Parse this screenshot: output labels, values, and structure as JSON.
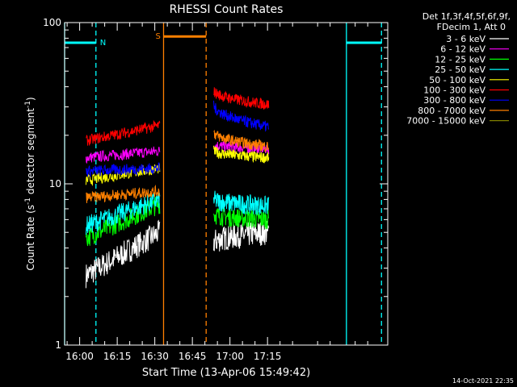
{
  "chart_data": {
    "type": "line",
    "title": "RHESSI Count Rates",
    "xlabel": "Start Time (13-Apr-06 15:49:42)",
    "ylabel_main": "Count Rate (s",
    "ylabel_sup1": "-1",
    "ylabel_mid": " detector segment",
    "ylabel_sup2": "-1",
    "ylabel_end": ")",
    "yscale": "log",
    "ylim": [
      1,
      100
    ],
    "y_ticks": [
      {
        "v": 1,
        "label": "1"
      },
      {
        "v": 10,
        "label": "10"
      },
      {
        "v": 100,
        "label": "100"
      }
    ],
    "xlim_min": [
      -6,
      123
    ],
    "x_ticks": [
      {
        "v": 0,
        "label": "16:00"
      },
      {
        "v": 15,
        "label": "16:15"
      },
      {
        "v": 30,
        "label": "16:30"
      },
      {
        "v": 45,
        "label": "16:45"
      },
      {
        "v": 60,
        "label": "17:00"
      },
      {
        "v": 75,
        "label": "17:15"
      }
    ],
    "legend_header": [
      "Det 1f,3f,4f,5f,6f,9f,",
      "FDecim 1, Att 0"
    ],
    "series": [
      {
        "name": "3 - 6 keV",
        "color": "#ffffff",
        "seg1": [
          2.7,
          5.0
        ],
        "seg2": [
          4.3,
          5.0
        ]
      },
      {
        "name": "6 - 12 keV",
        "color": "#ff00ff",
        "seg1": [
          14.5,
          16.0
        ],
        "seg2": [
          17.5,
          16.5
        ]
      },
      {
        "name": "12 - 25 keV",
        "color": "#00ff00",
        "seg1": [
          4.6,
          7.5
        ],
        "seg2": [
          6.5,
          6.0
        ]
      },
      {
        "name": "25 - 50 keV",
        "color": "#00ffff",
        "seg1": [
          5.5,
          8.0
        ],
        "seg2": [
          8.0,
          7.3
        ]
      },
      {
        "name": "50 - 100 keV",
        "color": "#ffff00",
        "seg1": [
          10.5,
          12.5
        ],
        "seg2": [
          16.0,
          14.5
        ]
      },
      {
        "name": "100 - 300 keV",
        "color": "#ff0000",
        "seg1": [
          18.5,
          23.0
        ],
        "seg2": [
          38.0,
          31.0
        ]
      },
      {
        "name": "300 - 800 keV",
        "color": "#0000ff",
        "seg1": [
          12.0,
          12.5
        ],
        "seg2": [
          31.0,
          22.5
        ]
      },
      {
        "name": "800 - 7000 keV",
        "color": "#ff8000",
        "seg1": [
          8.2,
          9.0
        ],
        "seg2": [
          21.0,
          17.0
        ]
      },
      {
        "name": "7000 - 15000 keV",
        "color": "#808000",
        "seg1": [],
        "seg2": []
      }
    ],
    "segments_time": [
      [
        2.5,
        32.0
      ],
      [
        53.5,
        75.5
      ]
    ],
    "bars": [
      {
        "label": "N",
        "color": "#00ffff",
        "y": 75,
        "start": -6,
        "end": 6.5,
        "vline_solid": -6,
        "vline_dashed": 6.5
      },
      {
        "label": "S",
        "color": "#ff8000",
        "y": 82,
        "start": 33.5,
        "end": 50.5,
        "vline_solid": 33.5,
        "vline_dashed": 50.5
      },
      {
        "label": "",
        "color": "#00ffff",
        "y": 75,
        "start": 106.5,
        "end": 120.5,
        "vline_solid": 106.5,
        "vline_dashed": 120.5
      }
    ],
    "annotation": "14-Oct-2021 22:35",
    "grid": false,
    "legend_placement": "top-right"
  },
  "colors": {
    "background": "#000000",
    "axes": "#ffffff"
  }
}
